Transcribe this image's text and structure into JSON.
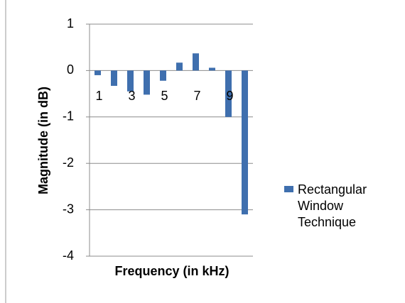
{
  "chart_data": {
    "type": "bar",
    "categories": [
      "1",
      null,
      "3",
      null,
      "5",
      null,
      "7",
      null,
      "9",
      null
    ],
    "series": [
      {
        "name": "Rectangular Window Technique",
        "color": "#3f6fae",
        "values": [
          -0.1,
          -0.33,
          -0.45,
          -0.52,
          -0.22,
          0.17,
          0.37,
          0.06,
          -1.0,
          -3.1
        ]
      }
    ],
    "ylim": [
      -4,
      1
    ],
    "yticks": [
      -4,
      -3,
      -2,
      -1,
      0,
      1
    ],
    "grid": true,
    "xlabel": "Frequency (in kHz)",
    "ylabel": "Magnitude (in dB)",
    "legend": "right"
  }
}
